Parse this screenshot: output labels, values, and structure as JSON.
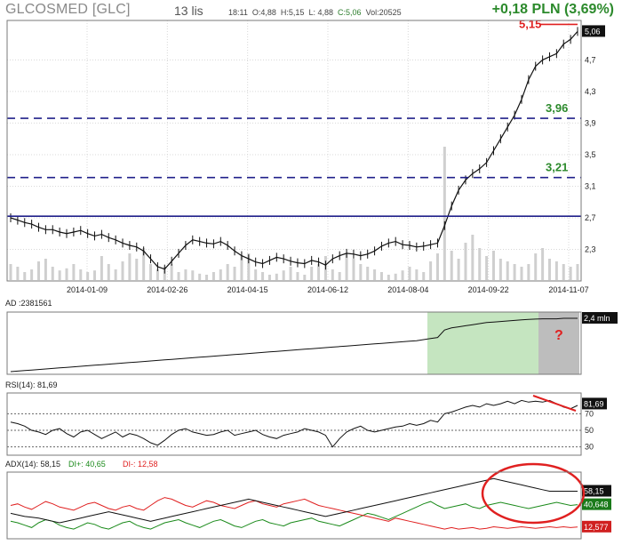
{
  "header": {
    "title": "GLCOSMED [GLC]",
    "date": "13 lis",
    "time": "18:11",
    "open": "O:4,88",
    "high": "H:5,15",
    "low": "L: 4,88",
    "close": "C:5,06",
    "volume": "Vol:20525",
    "change": "+0,18 PLN (3,69%)"
  },
  "colors": {
    "dash_line": "#20208a",
    "solid_line": "#20208a",
    "annotation_green": "#2c8a2c",
    "annotation_red": "#e02020",
    "highlight_green": "#c5e5c0",
    "highlight_gray": "#bdbdbd",
    "di_plus": "#1a8a1a",
    "di_minus": "#e02020"
  },
  "chart_data": [
    {
      "type": "line",
      "panel": "price",
      "x_tick_labels": [
        "2014-01-09",
        "2014-02-26",
        "2014-04-15",
        "2014-06-12",
        "2014-08-04",
        "2014-09-22",
        "2014-11-07"
      ],
      "y_tick_labels": [
        "2,3",
        "2,7",
        "3,1",
        "3,5",
        "3,9",
        "4,3",
        "4,7"
      ],
      "ylim": [
        1.9,
        5.2
      ],
      "last_value_label": "5,06",
      "levels": [
        {
          "value": 3.96,
          "label": "3,96",
          "style": "dashed"
        },
        {
          "value": 3.21,
          "label": "3,21",
          "style": "dashed"
        },
        {
          "value": 2.72,
          "label": "",
          "style": "solid"
        }
      ],
      "high_marker": {
        "value": 5.15,
        "label": "5,15"
      },
      "price_series": [
        2.7,
        2.67,
        2.64,
        2.62,
        2.58,
        2.55,
        2.55,
        2.52,
        2.5,
        2.52,
        2.54,
        2.5,
        2.47,
        2.49,
        2.45,
        2.42,
        2.38,
        2.35,
        2.33,
        2.28,
        2.18,
        2.08,
        2.05,
        2.15,
        2.25,
        2.35,
        2.42,
        2.4,
        2.38,
        2.37,
        2.4,
        2.35,
        2.28,
        2.22,
        2.18,
        2.14,
        2.12,
        2.16,
        2.2,
        2.18,
        2.15,
        2.13,
        2.12,
        2.16,
        2.14,
        2.1,
        2.18,
        2.22,
        2.25,
        2.24,
        2.22,
        2.24,
        2.28,
        2.34,
        2.38,
        2.4,
        2.36,
        2.35,
        2.33,
        2.34,
        2.36,
        2.38,
        2.6,
        2.85,
        3.05,
        3.18,
        3.26,
        3.32,
        3.4,
        3.55,
        3.7,
        3.85,
        4.0,
        4.2,
        4.45,
        4.62,
        4.7,
        4.74,
        4.78,
        4.9,
        4.96,
        5.06
      ],
      "volume_series": [
        0.3,
        0.25,
        0.15,
        0.2,
        0.35,
        0.4,
        0.25,
        0.18,
        0.22,
        0.3,
        0.2,
        0.15,
        0.18,
        0.45,
        0.3,
        0.2,
        0.35,
        0.5,
        0.4,
        0.6,
        0.3,
        0.2,
        0.25,
        0.3,
        0.15,
        0.2,
        0.18,
        0.12,
        0.1,
        0.15,
        0.2,
        0.3,
        0.25,
        0.45,
        0.5,
        0.2,
        0.15,
        0.1,
        0.12,
        0.18,
        0.25,
        0.15,
        0.1,
        0.25,
        0.3,
        0.45,
        0.2,
        0.15,
        0.5,
        0.4,
        0.3,
        0.25,
        0.2,
        0.15,
        0.1,
        0.12,
        0.18,
        0.25,
        0.2,
        0.15,
        0.35,
        0.5,
        1.0,
        0.55,
        0.4,
        0.7,
        0.85,
        0.6,
        0.45,
        0.55,
        0.4,
        0.35,
        0.3,
        0.25,
        0.3,
        0.5,
        0.6,
        0.4,
        0.35,
        0.3,
        0.25,
        0.3
      ]
    },
    {
      "type": "area",
      "panel": "ad",
      "title": "AD :2381561",
      "last_value_label": "2,4 mln",
      "annotation": "?",
      "ad_series": [
        0.0,
        0.01,
        0.02,
        0.03,
        0.04,
        0.05,
        0.06,
        0.07,
        0.08,
        0.09,
        0.1,
        0.11,
        0.12,
        0.13,
        0.14,
        0.15,
        0.16,
        0.17,
        0.18,
        0.19,
        0.2,
        0.21,
        0.22,
        0.23,
        0.24,
        0.25,
        0.26,
        0.27,
        0.28,
        0.29,
        0.3,
        0.31,
        0.32,
        0.33,
        0.34,
        0.35,
        0.36,
        0.37,
        0.38,
        0.39,
        0.4,
        0.41,
        0.42,
        0.43,
        0.44,
        0.45,
        0.46,
        0.47,
        0.48,
        0.49,
        0.5,
        0.51,
        0.52,
        0.53,
        0.54,
        0.55,
        0.56,
        0.57,
        0.58,
        0.6,
        0.62,
        0.64,
        0.78,
        0.82,
        0.84,
        0.86,
        0.88,
        0.9,
        0.92,
        0.93,
        0.94,
        0.95,
        0.96,
        0.97,
        0.98,
        0.985,
        0.99,
        0.99,
        0.99,
        1.0,
        1.0,
        1.0
      ]
    },
    {
      "type": "line",
      "panel": "rsi",
      "title": "RSI(14): 81,69",
      "y_tick_labels": [
        "30",
        "50",
        "70"
      ],
      "ylim": [
        20,
        95
      ],
      "last_value_label": "81,69",
      "rsi_series": [
        60,
        58,
        55,
        50,
        48,
        45,
        50,
        52,
        46,
        42,
        48,
        50,
        45,
        40,
        44,
        48,
        42,
        46,
        44,
        40,
        35,
        32,
        38,
        45,
        50,
        52,
        48,
        46,
        44,
        45,
        48,
        50,
        44,
        46,
        48,
        50,
        45,
        42,
        40,
        44,
        46,
        48,
        52,
        50,
        48,
        44,
        30,
        40,
        48,
        52,
        55,
        50,
        48,
        50,
        52,
        54,
        55,
        58,
        56,
        58,
        62,
        60,
        70,
        72,
        75,
        78,
        80,
        78,
        82,
        80,
        82,
        85,
        82,
        86,
        84,
        85,
        84,
        86,
        82,
        78,
        76,
        80
      ]
    },
    {
      "type": "line",
      "panel": "adx",
      "title": "ADX(14): 58,15",
      "series": [
        {
          "name": "DI+: 40,65",
          "last_label": "40,648",
          "values": [
            20,
            18,
            15,
            12,
            18,
            22,
            20,
            15,
            12,
            10,
            14,
            18,
            16,
            12,
            10,
            14,
            18,
            20,
            15,
            12,
            10,
            14,
            18,
            20,
            22,
            18,
            15,
            12,
            16,
            20,
            22,
            18,
            14,
            12,
            16,
            20,
            22,
            18,
            16,
            14,
            18,
            20,
            22,
            24,
            20,
            18,
            16,
            14,
            18,
            22,
            26,
            30,
            28,
            25,
            22,
            26,
            30,
            34,
            38,
            42,
            45,
            40,
            36,
            38,
            40,
            42,
            38,
            36,
            40,
            42,
            44,
            42,
            40,
            38,
            36,
            38,
            40,
            42,
            44,
            42,
            40,
            41
          ]
        },
        {
          "name": "DI-: 12,58",
          "last_label": "12,577",
          "values": [
            40,
            42,
            38,
            35,
            40,
            45,
            42,
            38,
            36,
            34,
            38,
            42,
            44,
            40,
            36,
            34,
            38,
            40,
            36,
            34,
            40,
            46,
            50,
            48,
            44,
            40,
            38,
            42,
            46,
            44,
            40,
            38,
            36,
            40,
            44,
            46,
            42,
            40,
            38,
            42,
            44,
            46,
            48,
            44,
            40,
            38,
            36,
            34,
            32,
            30,
            28,
            26,
            24,
            22,
            20,
            24,
            22,
            20,
            18,
            16,
            14,
            12,
            10,
            12,
            10,
            11,
            12,
            10,
            11,
            13,
            12,
            11,
            12,
            13,
            12,
            11,
            12,
            13,
            12,
            13,
            12,
            12.6
          ]
        },
        {
          "name": "ADX(14): 58,15",
          "last_label": "58,15",
          "values": [
            30,
            28,
            26,
            25,
            24,
            22,
            20,
            18,
            20,
            22,
            24,
            26,
            28,
            30,
            32,
            30,
            28,
            26,
            24,
            22,
            20,
            22,
            24,
            26,
            28,
            30,
            32,
            34,
            36,
            38,
            40,
            42,
            44,
            46,
            48,
            46,
            44,
            42,
            40,
            38,
            36,
            34,
            32,
            30,
            28,
            26,
            28,
            30,
            32,
            34,
            36,
            38,
            40,
            42,
            44,
            46,
            48,
            50,
            52,
            54,
            56,
            58,
            60,
            62,
            64,
            66,
            68,
            70,
            72,
            74,
            72,
            70,
            68,
            66,
            64,
            62,
            60,
            58,
            58,
            58,
            58,
            58
          ]
        }
      ]
    }
  ]
}
